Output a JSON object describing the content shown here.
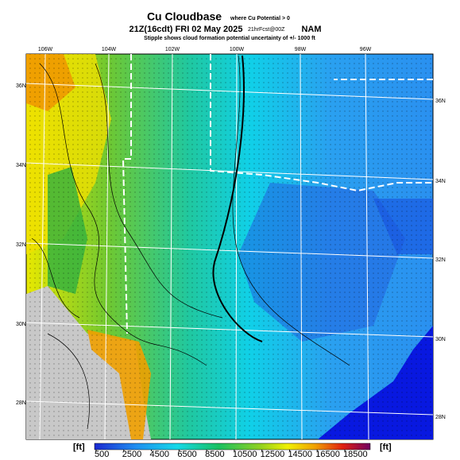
{
  "header": {
    "title": "Cu Cloudbase",
    "title_note": "where Cu Potential > 0",
    "valid_time": "21Z(16cdt) FRI 02 May 2025",
    "forecast": "21hrFcst@00Z",
    "model": "NAM",
    "subtitle": "Stipple shows cloud formation potential uncertainty of +/- 1000 ft"
  },
  "map": {
    "lon_labels": [
      "106W",
      "104W",
      "102W",
      "100W",
      "98W",
      "96W"
    ],
    "lat_labels_left": [
      "36N",
      "34N",
      "32N",
      "30N",
      "28N"
    ],
    "lat_labels_right": [
      "36N",
      "34N",
      "32N",
      "30N",
      "28N"
    ]
  },
  "colorbar": {
    "unit_left": "[ft]",
    "unit_right": "[ft]",
    "ticks": [
      500,
      2500,
      4500,
      6500,
      8500,
      10500,
      12500,
      14500,
      16500,
      18500
    ]
  }
}
